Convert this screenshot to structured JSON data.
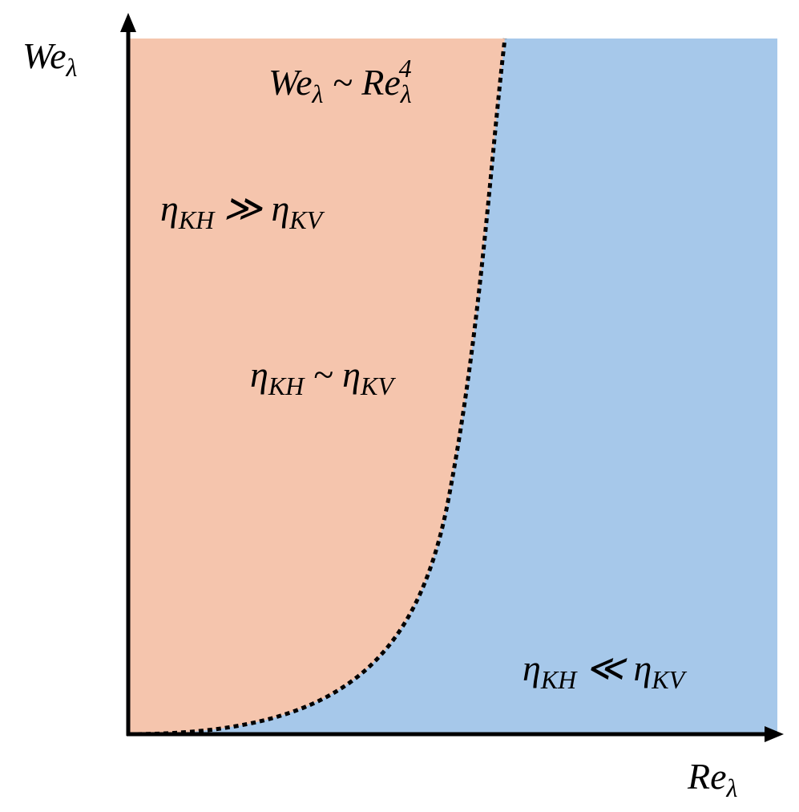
{
  "axes": {
    "y_label": [
      {
        "text": "We"
      },
      {
        "text": "λ",
        "sub": true
      }
    ],
    "x_label": [
      {
        "text": "Re"
      },
      {
        "text": "λ",
        "sub": true
      }
    ]
  },
  "boundary": {
    "label": [
      {
        "text": "We"
      },
      {
        "text": "λ",
        "sub": true
      },
      {
        "text": " ~ Re"
      },
      {
        "text": "λ",
        "sub": true
      },
      {
        "text": "4",
        "sup": true
      }
    ]
  },
  "regions": [
    {
      "label": [
        {
          "text": "η"
        },
        {
          "text": "KH",
          "sub": true
        },
        {
          "text": " ≫ η"
        },
        {
          "text": "KV",
          "sub": true
        }
      ]
    },
    {
      "label": [
        {
          "text": "η"
        },
        {
          "text": "KH",
          "sub": true
        },
        {
          "text": " ~ η"
        },
        {
          "text": "KV",
          "sub": true
        }
      ]
    },
    {
      "label": [
        {
          "text": "η"
        },
        {
          "text": "KH",
          "sub": true
        },
        {
          "text": " ≪ η"
        },
        {
          "text": "KV",
          "sub": true
        }
      ]
    }
  ]
}
